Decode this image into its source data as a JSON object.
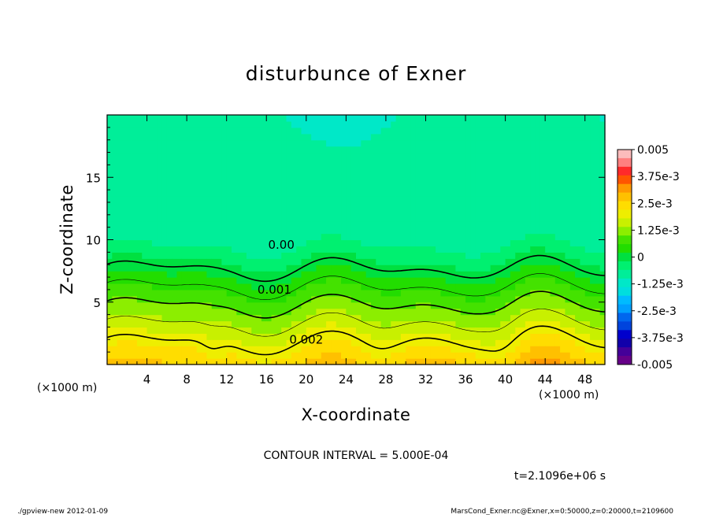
{
  "chart_data": {
    "type": "heatmap",
    "title": "disturbunce of Exner",
    "xlabel": "X-coordinate",
    "ylabel": "Z-coordinate",
    "x_unit": "(×1000 m)",
    "x_unit_right": "(×1000 m)",
    "xlim": [
      0,
      50
    ],
    "ylim": [
      0,
      20
    ],
    "x_ticks": [
      4,
      8,
      12,
      16,
      20,
      24,
      28,
      32,
      36,
      40,
      44,
      48
    ],
    "y_ticks": [
      5,
      10,
      15
    ],
    "colorbar": {
      "min": -0.005,
      "max": 0.005,
      "levels": [
        "0.005",
        "3.75e-3",
        "2.5e-3",
        "1.25e-3",
        "0",
        "-1.25e-3",
        "-2.5e-3",
        "-3.75e-3",
        "-0.005"
      ],
      "colors": [
        "#fcbcbc",
        "#ff8080",
        "#ff2a2a",
        "#ff5500",
        "#ff9900",
        "#ffc000",
        "#ffdd00",
        "#eeee00",
        "#c8f000",
        "#8cee00",
        "#44e200",
        "#22dd00",
        "#00e040",
        "#00f070",
        "#00ee99",
        "#00e8c8",
        "#00dede",
        "#00bbff",
        "#009fff",
        "#0066ee",
        "#0044dd",
        "#0000cc",
        "#1100aa",
        "#440099",
        "#660088"
      ]
    },
    "contour_labels": [
      {
        "text": "0.00",
        "x": 17.5,
        "y": 9.6
      },
      {
        "text": "0.001",
        "x": 16.8,
        "y": 6.0
      },
      {
        "text": "0.002",
        "x": 20.0,
        "y": 2.0
      }
    ],
    "contour_interval": "CONTOUR INTERVAL = 5.000E-04",
    "time_label": "t=2.1096e+06 s"
  },
  "footer": {
    "left": "./gpview-new   2012-01-09",
    "right": "MarsCond_Exner.nc@Exner,x=0:50000,z=0:20000,t=2109600"
  }
}
